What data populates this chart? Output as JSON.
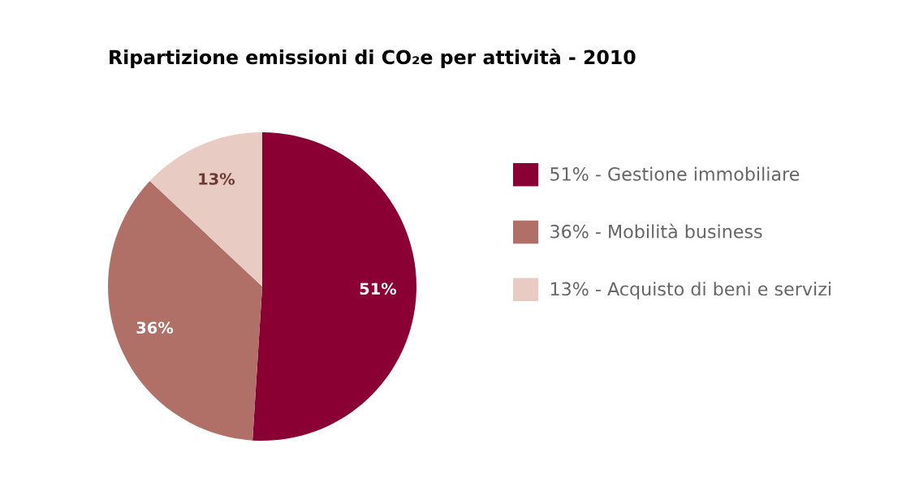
{
  "chart_data": {
    "type": "pie",
    "title": "Ripartizione emissioni di CO₂e per attività - 2010",
    "categories": [
      "51% - Gestione immobiliare",
      "36% - Mobilità business",
      "13% - Acquisto di beni e servizi"
    ],
    "values": [
      51,
      36,
      13
    ],
    "colors": [
      "#8a0032",
      "#b07068",
      "#e8cbc2"
    ],
    "value_labels": [
      "51%",
      "36%",
      "13%"
    ],
    "legend": "right"
  }
}
